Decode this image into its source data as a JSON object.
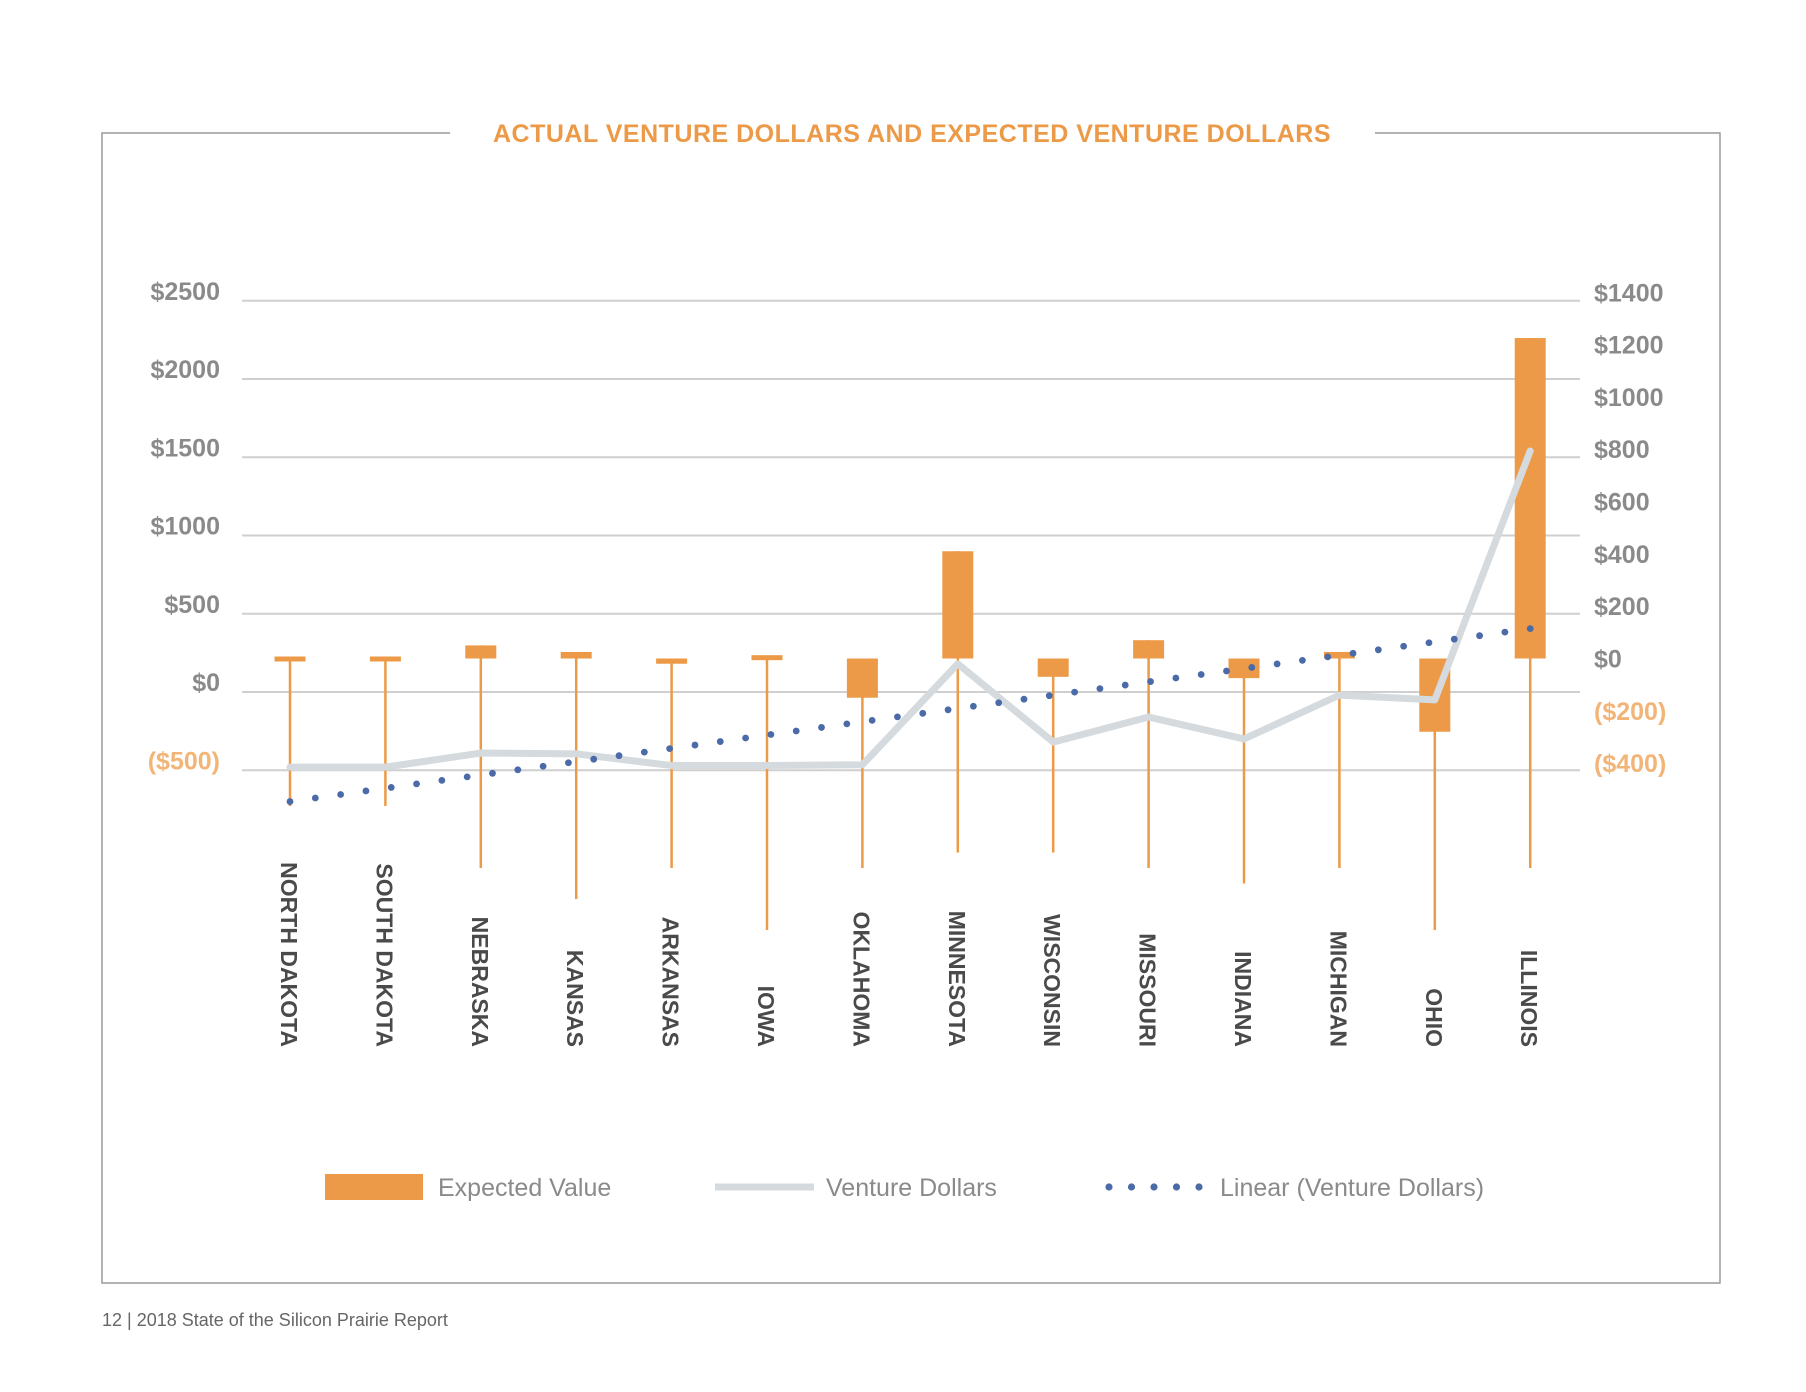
{
  "footer": "12 | 2018 State of the Silicon Prairie Report",
  "colors": {
    "bar": "#ec9a48",
    "line": "#d4dadd",
    "trend": "#4a6aa8",
    "grid": "#cfcfcf",
    "title": "#ec9a48"
  },
  "chart_data": {
    "type": "bar",
    "title": "ACTUAL VENTURE DOLLARS AND EXPECTED VENTURE DOLLARS",
    "categories": [
      "NORTH DAKOTA",
      "SOUTH DAKOTA",
      "NEBRASKA",
      "KANSAS",
      "ARKANSAS",
      "IOWA",
      "OKLAHOMA",
      "MINNESOTA",
      "WISCONSIN",
      "MISSOURI",
      "INDIANA",
      "MICHIGAN",
      "OHIO",
      "ILLINOIS"
    ],
    "left_axis": {
      "ylim": [
        -500,
        2500
      ],
      "ticks": [
        {
          "value": 2500,
          "label": "$2500"
        },
        {
          "value": 2000,
          "label": "$2000"
        },
        {
          "value": 1500,
          "label": "$1500"
        },
        {
          "value": 1000,
          "label": "$1000"
        },
        {
          "value": 500,
          "label": "$500"
        },
        {
          "value": 0,
          "label": "$0"
        },
        {
          "value": -500,
          "label": "($500)"
        }
      ]
    },
    "right_axis": {
      "ylim": [
        -400,
        1400
      ],
      "ticks": [
        {
          "value": 1400,
          "label": "$1400"
        },
        {
          "value": 1200,
          "label": "$1200"
        },
        {
          "value": 1000,
          "label": "$1000"
        },
        {
          "value": 800,
          "label": "$800"
        },
        {
          "value": 600,
          "label": "$600"
        },
        {
          "value": 400,
          "label": "$400"
        },
        {
          "value": 200,
          "label": "$200"
        },
        {
          "value": 0,
          "label": "$0"
        },
        {
          "value": -200,
          "label": "($200)"
        },
        {
          "value": -400,
          "label": "($400)"
        }
      ]
    },
    "series": [
      {
        "name": "Expected Value",
        "kind": "bar",
        "axis": "right",
        "values": [
          -10,
          -10,
          50,
          25,
          -20,
          5,
          -150,
          410,
          -70,
          70,
          -75,
          25,
          -280,
          1225
        ]
      },
      {
        "name": "Venture Dollars",
        "kind": "line",
        "axis": "left",
        "values": [
          -480,
          -480,
          -390,
          -395,
          -470,
          -470,
          -465,
          180,
          -320,
          -160,
          -300,
          -20,
          -50,
          1540
        ]
      },
      {
        "name": "Linear (Venture Dollars)",
        "kind": "trend",
        "axis": "left",
        "values": [
          -700,
          -615,
          -530,
          -445,
          -360,
          -275,
          -190,
          -105,
          -20,
          65,
          150,
          235,
          320,
          405
        ]
      }
    ],
    "legend": [
      {
        "label": "Expected Value",
        "style": "bar"
      },
      {
        "label": "Venture Dollars",
        "style": "line"
      },
      {
        "label": "Linear (Venture Dollars)",
        "style": "dotted"
      }
    ],
    "legend_position": "bottom",
    "grid": true
  }
}
